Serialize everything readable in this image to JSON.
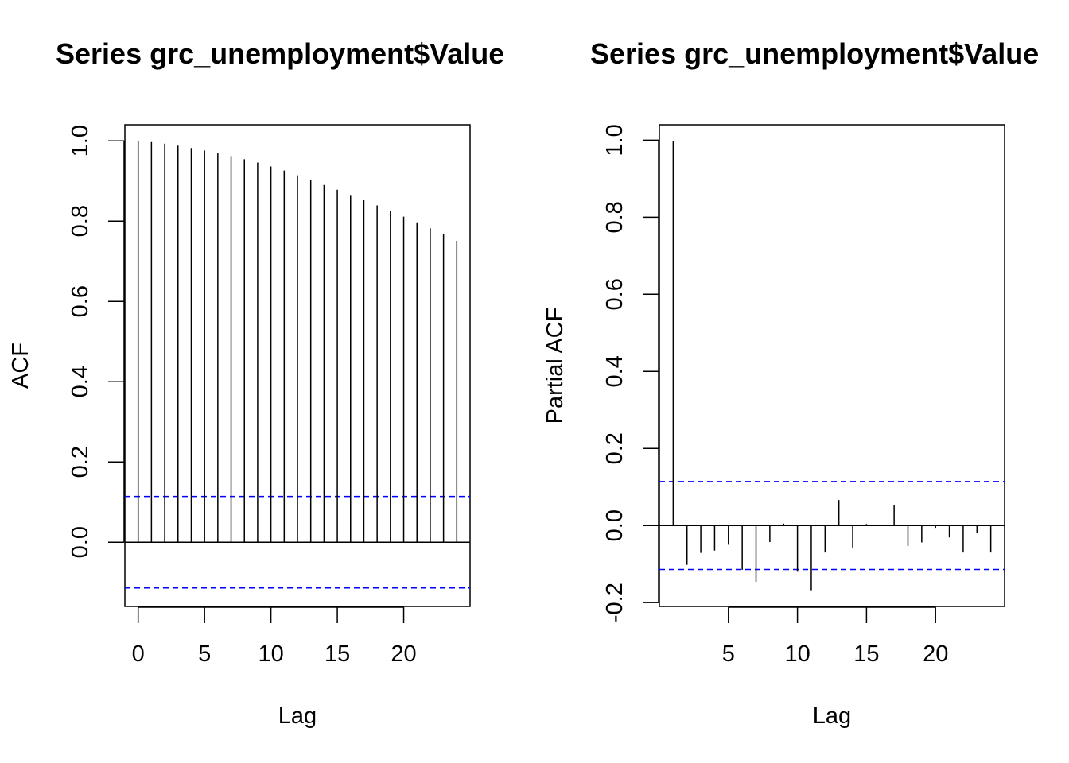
{
  "chart_data": [
    {
      "type": "bar",
      "title": "Series  grc_unemployment$Value",
      "xlabel": "Lag",
      "ylabel": "ACF",
      "xlim": [
        -1,
        25
      ],
      "ylim": [
        -0.16,
        1.04
      ],
      "x_ticks": [
        0,
        5,
        10,
        15,
        20
      ],
      "y_ticks": [
        0.0,
        0.2,
        0.4,
        0.6,
        0.8,
        1.0
      ],
      "y_tick_labels": [
        "0.0",
        "0.2",
        "0.4",
        "0.6",
        "0.8",
        "1.0"
      ],
      "x": [
        0,
        1,
        2,
        3,
        4,
        5,
        6,
        7,
        8,
        9,
        10,
        11,
        12,
        13,
        14,
        15,
        16,
        17,
        18,
        19,
        20,
        21,
        22,
        23,
        24
      ],
      "values": [
        1.0,
        0.997,
        0.993,
        0.988,
        0.982,
        0.976,
        0.97,
        0.962,
        0.954,
        0.946,
        0.936,
        0.926,
        0.914,
        0.902,
        0.89,
        0.878,
        0.865,
        0.852,
        0.839,
        0.825,
        0.811,
        0.797,
        0.782,
        0.767,
        0.751
      ],
      "confidence_bound": 0.114,
      "zero_line": true,
      "bound_color": "#0000ff"
    },
    {
      "type": "bar",
      "title": "Series  grc_unemployment$Value",
      "xlabel": "Lag",
      "ylabel": "Partial ACF",
      "xlim": [
        0,
        25
      ],
      "ylim": [
        -0.21,
        1.04
      ],
      "x_ticks": [
        5,
        10,
        15,
        20
      ],
      "y_ticks": [
        -0.2,
        0.0,
        0.2,
        0.4,
        0.6,
        0.8,
        1.0
      ],
      "y_tick_labels": [
        "-0.2",
        "0.0",
        "0.2",
        "0.4",
        "0.6",
        "0.8",
        "1.0"
      ],
      "x": [
        1,
        2,
        3,
        4,
        5,
        6,
        7,
        8,
        9,
        10,
        11,
        12,
        13,
        14,
        15,
        16,
        17,
        18,
        19,
        20,
        21,
        22,
        23,
        24
      ],
      "values": [
        0.997,
        -0.102,
        -0.071,
        -0.065,
        -0.05,
        -0.115,
        -0.146,
        -0.043,
        0.005,
        -0.12,
        -0.168,
        -0.07,
        0.066,
        -0.057,
        0.004,
        0.002,
        0.052,
        -0.053,
        -0.044,
        -0.006,
        -0.031,
        -0.07,
        -0.019,
        -0.07
      ],
      "confidence_bound": 0.114,
      "zero_line": true,
      "bound_color": "#0000ff"
    }
  ]
}
